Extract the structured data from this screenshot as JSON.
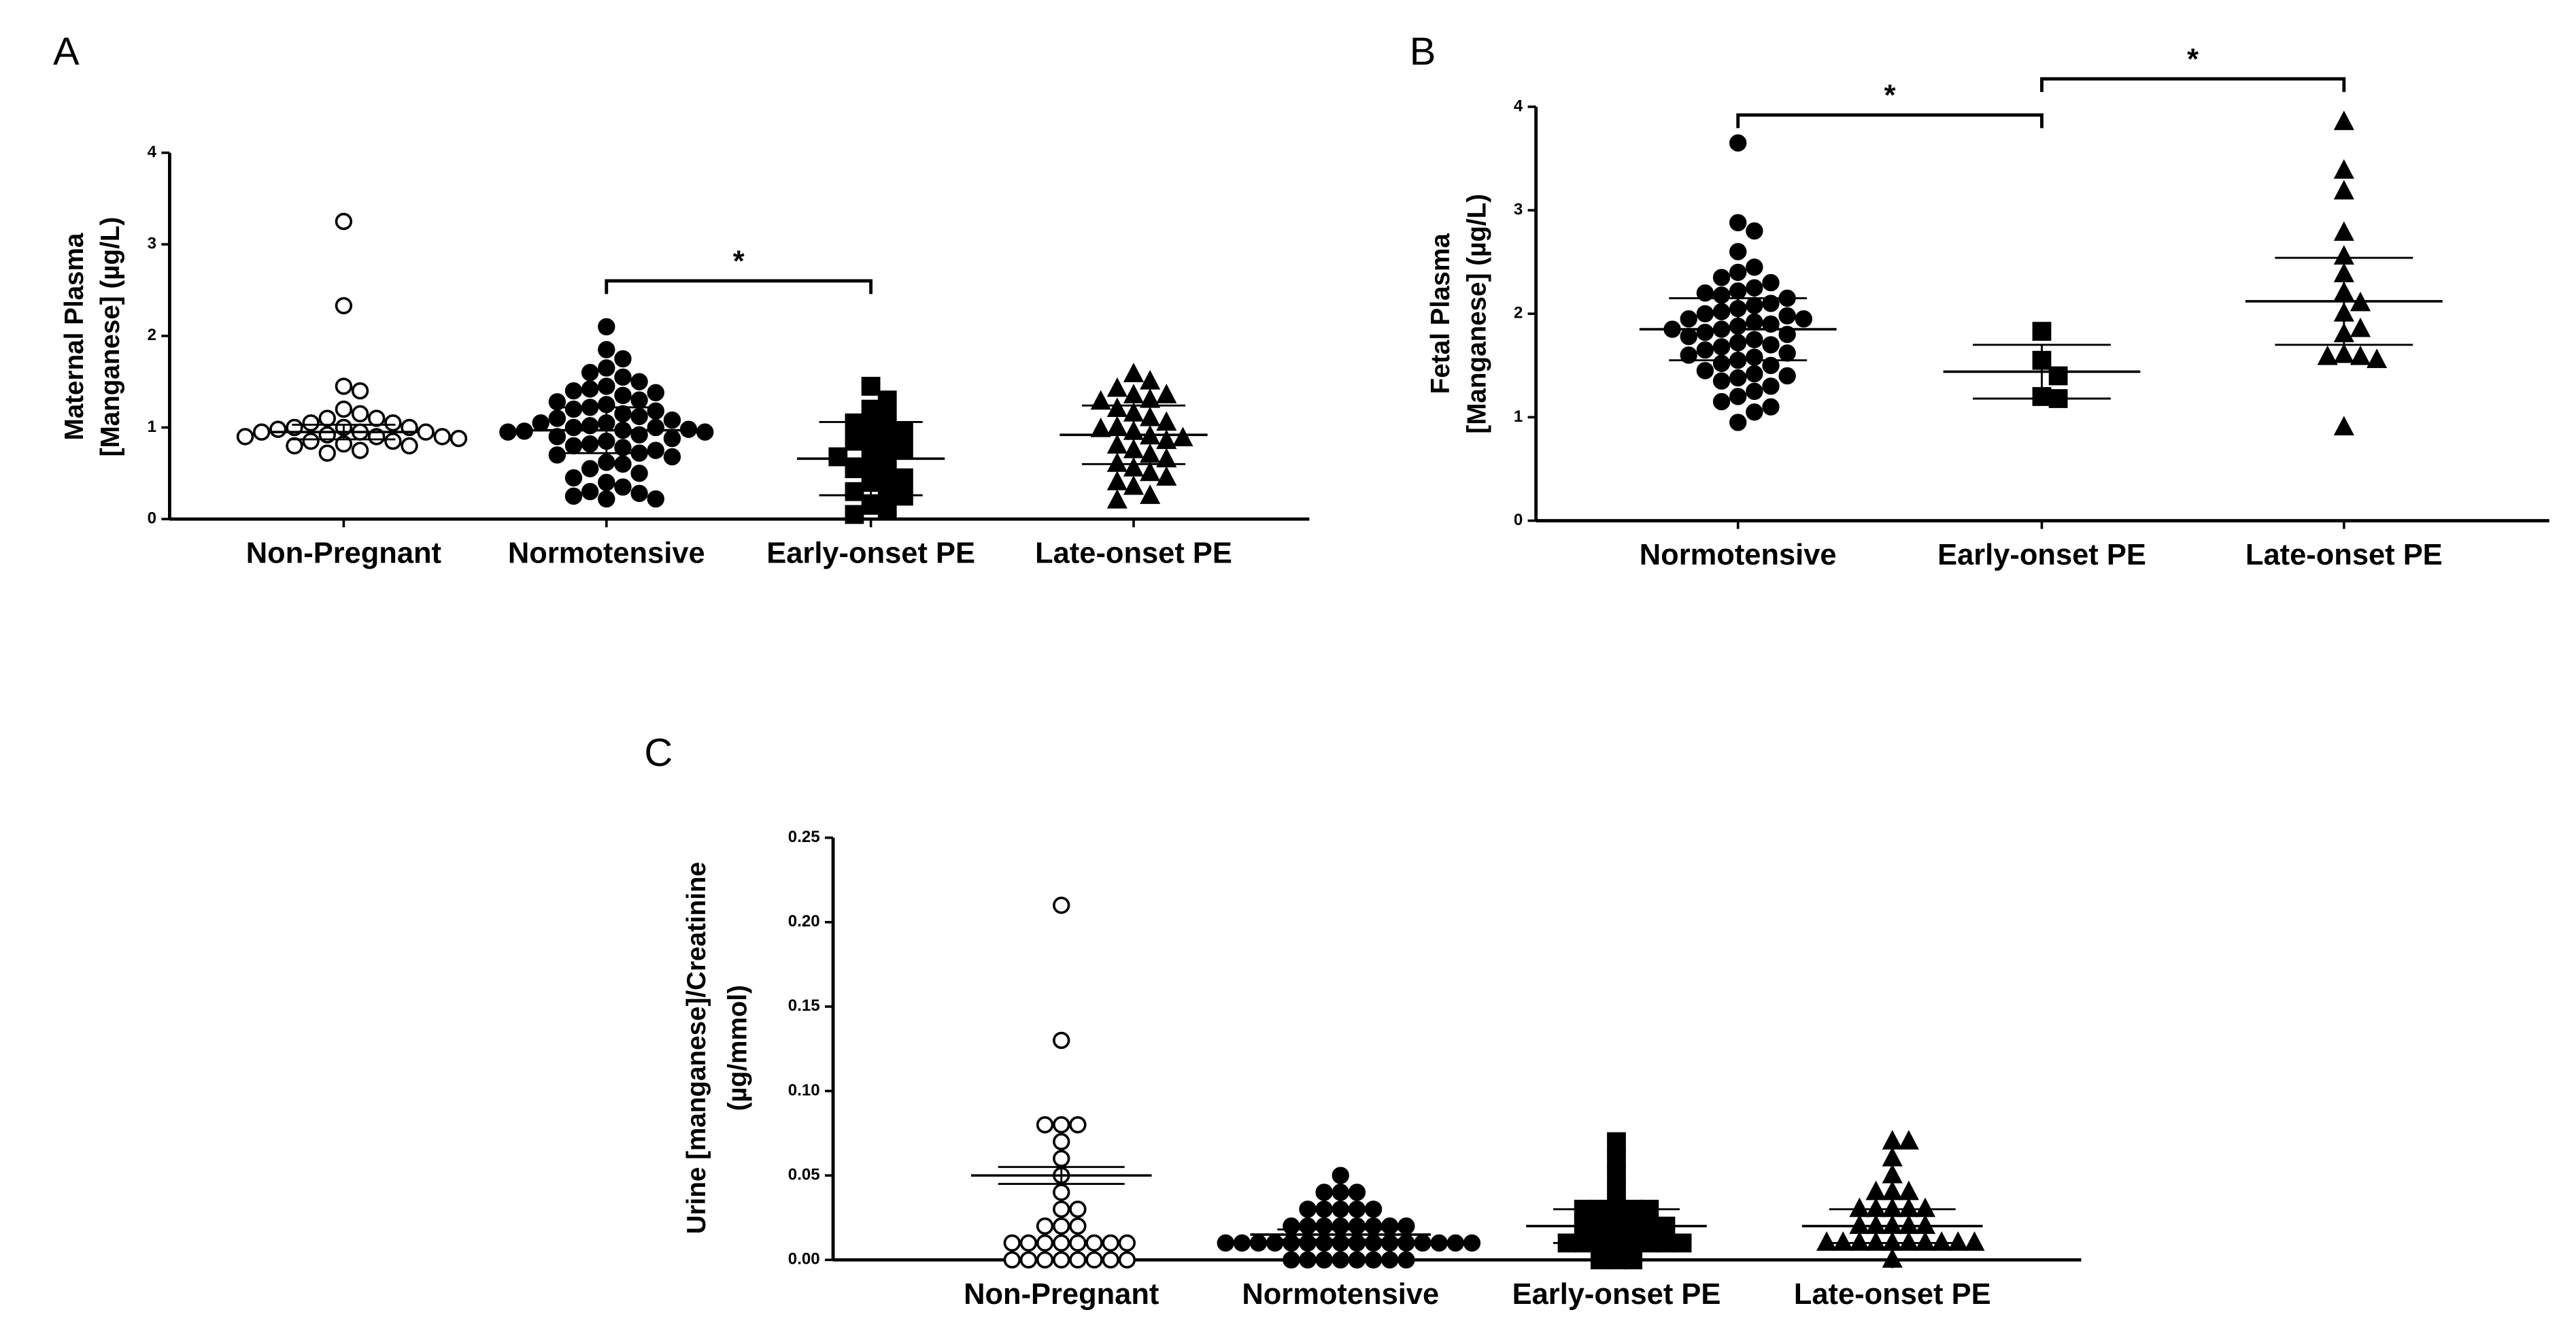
{
  "chart_data": [
    {
      "type": "dot",
      "panel": "A",
      "ylabel": [
        "Maternal Plasma",
        "[Manganese] (µg/L)"
      ],
      "categories": [
        "Non-Pregnant",
        "Normotensive",
        "Early-onset PE",
        "Late-onset PE"
      ],
      "markers": [
        "open-circle",
        "circle",
        "square",
        "triangle"
      ],
      "points": [
        [
          3.25,
          2.33,
          1.45,
          1.4,
          1.2,
          1.15,
          1.1,
          1.1,
          1.05,
          1.05,
          1.0,
          1.0,
          1.0,
          0.98,
          0.95,
          0.95,
          0.95,
          0.92,
          0.9,
          0.9,
          0.9,
          0.88,
          0.85,
          0.85,
          0.82,
          0.8,
          0.8,
          0.75,
          0.72
        ],
        [
          2.1,
          1.85,
          1.75,
          1.65,
          1.6,
          1.55,
          1.5,
          1.45,
          1.42,
          1.4,
          1.38,
          1.35,
          1.3,
          1.28,
          1.25,
          1.22,
          1.2,
          1.18,
          1.15,
          1.12,
          1.1,
          1.08,
          1.05,
          1.05,
          1.02,
          1.0,
          1.0,
          0.98,
          0.97,
          0.96,
          0.95,
          0.95,
          0.92,
          0.9,
          0.88,
          0.85,
          0.82,
          0.8,
          0.78,
          0.75,
          0.72,
          0.7,
          0.68,
          0.62,
          0.6,
          0.55,
          0.5,
          0.45,
          0.4,
          0.35,
          0.3,
          0.28,
          0.25,
          0.22,
          0.22
        ],
        [
          1.45,
          1.3,
          1.2,
          1.1,
          1.05,
          1.0,
          0.95,
          0.9,
          0.85,
          0.8,
          0.75,
          0.7,
          0.68,
          0.6,
          0.55,
          0.5,
          0.45,
          0.4,
          0.3,
          0.3,
          0.25,
          0.15,
          0.1,
          0.05
        ],
        [
          1.58,
          1.5,
          1.42,
          1.35,
          1.35,
          1.3,
          1.28,
          1.2,
          1.15,
          1.1,
          1.05,
          1.0,
          0.98,
          0.95,
          0.9,
          0.88,
          0.85,
          0.8,
          0.75,
          0.7,
          0.65,
          0.6,
          0.55,
          0.5,
          0.45,
          0.4,
          0.35,
          0.25,
          0.2
        ]
      ],
      "means": [
        0.95,
        0.97,
        0.66,
        0.92
      ],
      "errors": [
        0.08,
        0.25,
        0.4,
        0.32
      ],
      "ylim": [
        0,
        4
      ],
      "yticks": [
        0,
        1,
        2,
        3,
        4
      ],
      "brackets": [
        {
          "between": [
            "Normotensive",
            "Early-onset PE"
          ],
          "label": "*"
        }
      ]
    },
    {
      "type": "dot",
      "panel": "B",
      "ylabel": [
        "Fetal Plasma",
        "[Manganese] (µg/L)"
      ],
      "categories": [
        "Normotensive",
        "Early-onset PE",
        "Late-onset PE"
      ],
      "markers": [
        "circle",
        "square",
        "triangle"
      ],
      "points": [
        [
          3.65,
          2.88,
          2.8,
          2.6,
          2.45,
          2.4,
          2.35,
          2.3,
          2.25,
          2.22,
          2.2,
          2.18,
          2.15,
          2.1,
          2.08,
          2.05,
          2.02,
          2.0,
          1.98,
          1.95,
          1.95,
          1.92,
          1.9,
          1.88,
          1.85,
          1.85,
          1.82,
          1.8,
          1.78,
          1.75,
          1.72,
          1.7,
          1.68,
          1.65,
          1.62,
          1.6,
          1.58,
          1.55,
          1.52,
          1.5,
          1.45,
          1.42,
          1.4,
          1.38,
          1.35,
          1.3,
          1.25,
          1.2,
          1.15,
          1.1,
          1.05,
          0.95
        ],
        [
          1.83,
          1.55,
          1.4,
          1.2,
          1.18
        ],
        [
          3.85,
          3.38,
          3.18,
          2.78,
          2.55,
          2.38,
          2.2,
          2.1,
          2.0,
          1.85,
          1.8,
          1.6,
          1.58,
          1.58,
          1.55,
          0.9
        ]
      ],
      "means": [
        1.85,
        1.44,
        2.12
      ],
      "errors": [
        0.3,
        0.26,
        0.42
      ],
      "ylim": [
        0,
        4
      ],
      "yticks": [
        0,
        1,
        2,
        3,
        4
      ],
      "brackets": [
        {
          "between": [
            "Normotensive",
            "Early-onset PE"
          ],
          "label": "*"
        },
        {
          "between": [
            "Early-onset PE",
            "Late-onset PE"
          ],
          "label": "*"
        }
      ]
    },
    {
      "type": "dot",
      "panel": "C",
      "ylabel": [
        "Urine [manganese]/Creatinine",
        "(µg/mmol)"
      ],
      "categories": [
        "Non-Pregnant",
        "Normotensive",
        "Early-onset PE",
        "Late-onset PE"
      ],
      "markers": [
        "open-circle",
        "circle",
        "square",
        "triangle"
      ],
      "points": [
        [
          0.21,
          0.13,
          0.08,
          0.08,
          0.08,
          0.07,
          0.06,
          0.05,
          0.04,
          0.03,
          0.03,
          0.02,
          0.02,
          0.02,
          0.01,
          0.01,
          0.01,
          0.01,
          0.01,
          0.01,
          0.01,
          0.01,
          0,
          0,
          0,
          0,
          0,
          0,
          0,
          0
        ],
        [
          0.05,
          0.04,
          0.04,
          0.04,
          0.03,
          0.03,
          0.03,
          0.03,
          0.03,
          0.02,
          0.02,
          0.02,
          0.02,
          0.02,
          0.02,
          0.02,
          0.02,
          0.01,
          0.01,
          0.01,
          0.01,
          0.01,
          0.01,
          0.01,
          0.01,
          0.01,
          0.01,
          0.01,
          0.01,
          0.01,
          0.01,
          0.01,
          0.01,
          0,
          0,
          0,
          0,
          0,
          0,
          0,
          0
        ],
        [
          0.07,
          0.06,
          0.05,
          0.04,
          0.03,
          0.03,
          0.03,
          0.03,
          0.03,
          0.02,
          0.02,
          0.02,
          0.02,
          0.02,
          0.02,
          0.01,
          0.01,
          0.01,
          0.01,
          0.01,
          0.01,
          0.01,
          0.01,
          0,
          0,
          0
        ],
        [
          0.07,
          0.07,
          0.06,
          0.05,
          0.04,
          0.04,
          0.04,
          0.03,
          0.03,
          0.03,
          0.03,
          0.03,
          0.02,
          0.02,
          0.02,
          0.02,
          0.02,
          0.01,
          0.01,
          0.01,
          0.01,
          0.01,
          0.01,
          0.01,
          0.01,
          0.01,
          0.01,
          0
        ]
      ],
      "means": [
        0.05,
        0.015,
        0.02,
        0.02
      ],
      "errors": [
        0.005,
        0.003,
        0.01,
        0.01
      ],
      "ylim": [
        0,
        0.25
      ],
      "yticks": [
        {
          "value": 0,
          "label": "0.00"
        },
        {
          "value": 0.05,
          "label": "0.05"
        },
        {
          "value": 0.1,
          "label": "0.10"
        },
        {
          "value": 0.15,
          "label": "0.15"
        },
        {
          "value": 0.2,
          "label": "0.20"
        },
        {
          "value": 0.25,
          "label": "0.25"
        }
      ]
    }
  ]
}
